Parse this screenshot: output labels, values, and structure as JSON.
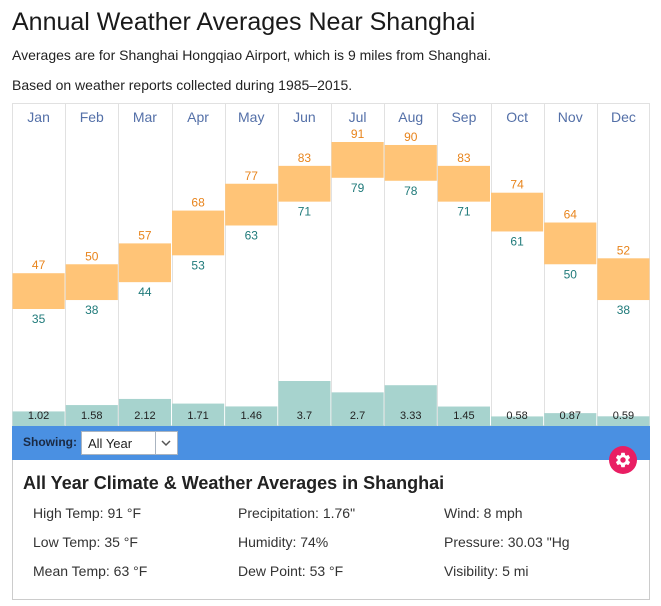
{
  "page_title": "Annual Weather Averages Near Shanghai",
  "subtitle_1": "Averages are for Shanghai Hongqiao Airport, which is 9 miles from Shanghai.",
  "subtitle_2": "Based on weather reports collected during 1985–2015.",
  "colors": {
    "temp_bar": "#ffc477",
    "high_label": "#e8841c",
    "low_label": "#1f7a7a",
    "precip_bar": "#a7d3ce",
    "month_label": "#5470a8",
    "showing_bar": "#4a90e2",
    "settings_button": "#e91e63"
  },
  "chart_data": {
    "type": "bar",
    "categories": [
      "Jan",
      "Feb",
      "Mar",
      "Apr",
      "May",
      "Jun",
      "Jul",
      "Aug",
      "Sep",
      "Oct",
      "Nov",
      "Dec"
    ],
    "series": [
      {
        "values": [
          47,
          50,
          57,
          68,
          77,
          83,
          91,
          90,
          83,
          74,
          64,
          52
        ]
      },
      {
        "values": [
          35,
          38,
          44,
          53,
          63,
          71,
          79,
          78,
          71,
          61,
          50,
          38
        ]
      },
      {
        "values": [
          1.02,
          1.58,
          2.12,
          1.71,
          1.46,
          3.7,
          2.7,
          3.33,
          1.45,
          0.58,
          0.87,
          0.59
        ]
      }
    ],
    "precip_labels": [
      "1.02",
      "1.58",
      "2.12",
      "1.71",
      "1.46",
      "3.7",
      "2.7",
      "3.33",
      "1.45",
      "0.58",
      "0.87",
      "0.59"
    ],
    "grid": true
  },
  "showing": {
    "label": "Showing:",
    "selected": "All Year"
  },
  "summary": {
    "title": "All Year Climate & Weather Averages in Shanghai",
    "stats": [
      [
        "High Temp: 91 °F",
        "Precipitation: 1.76\"",
        "Wind: 8 mph"
      ],
      [
        "Low Temp: 35 °F",
        "Humidity: 74%",
        "Pressure: 30.03 \"Hg"
      ],
      [
        "Mean Temp: 63 °F",
        "Dew Point: 53 °F",
        "Visibility: 5 mi"
      ]
    ]
  },
  "icons": {
    "dropdown": "chevron-down-icon",
    "settings": "gear-icon"
  }
}
